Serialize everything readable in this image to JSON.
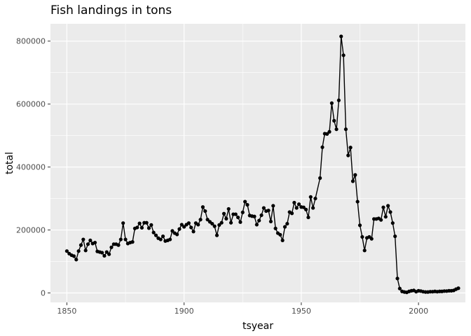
{
  "chart_data": {
    "type": "line",
    "title": "Fish landings in tons",
    "xlabel": "tsyear",
    "ylabel": "total",
    "xlim": [
      1843,
      2020
    ],
    "ylim": [
      -30000,
      855000
    ],
    "x_ticks": [
      1850,
      1900,
      1950,
      2000
    ],
    "x_minor_ticks": [
      1875,
      1925,
      1975,
      2025
    ],
    "y_ticks": [
      0,
      200000,
      400000,
      600000,
      800000
    ],
    "y_tick_labels": [
      "0",
      "200000",
      "400000",
      "600000",
      "800000"
    ],
    "y_minor_ticks": [
      100000,
      300000,
      500000,
      700000
    ],
    "grid": true,
    "panel_background": "#ebebeb",
    "markers": true,
    "series": [
      {
        "color": "#000000",
        "x": [
          1850,
          1851,
          1852,
          1853,
          1854,
          1855,
          1856,
          1857,
          1858,
          1859,
          1860,
          1861,
          1862,
          1863,
          1864,
          1865,
          1866,
          1867,
          1868,
          1869,
          1870,
          1871,
          1872,
          1873,
          1874,
          1875,
          1876,
          1877,
          1878,
          1879,
          1880,
          1881,
          1882,
          1883,
          1884,
          1885,
          1886,
          1887,
          1888,
          1889,
          1890,
          1891,
          1892,
          1893,
          1894,
          1895,
          1896,
          1897,
          1898,
          1899,
          1900,
          1901,
          1902,
          1903,
          1904,
          1905,
          1906,
          1907,
          1908,
          1909,
          1910,
          1911,
          1912,
          1913,
          1914,
          1915,
          1916,
          1917,
          1918,
          1919,
          1920,
          1921,
          1922,
          1923,
          1924,
          1925,
          1926,
          1927,
          1928,
          1929,
          1930,
          1931,
          1932,
          1933,
          1934,
          1935,
          1936,
          1937,
          1938,
          1939,
          1940,
          1941,
          1942,
          1943,
          1944,
          1945,
          1946,
          1947,
          1948,
          1949,
          1950,
          1951,
          1952,
          1953,
          1954,
          1955,
          1956,
          1958,
          1959,
          1960,
          1961,
          1962,
          1963,
          1964,
          1965,
          1966,
          1967,
          1968,
          1969,
          1970,
          1971,
          1972,
          1973,
          1974,
          1975,
          1976,
          1977,
          1978,
          1979,
          1980,
          1981,
          1982,
          1983,
          1984,
          1985,
          1986,
          1987,
          1988,
          1989,
          1990,
          1991,
          1992,
          1993,
          1994,
          1995,
          1996,
          1997,
          1998,
          1999,
          2000,
          2001,
          2002,
          2003,
          2004,
          2005,
          2006,
          2007,
          2008,
          2009,
          2010,
          2011,
          2012,
          2013,
          2014,
          2015,
          2016,
          2017
        ],
        "y": [
          133000,
          125000,
          120000,
          117000,
          106000,
          133000,
          152000,
          170000,
          135000,
          155000,
          167000,
          157000,
          160000,
          132000,
          130000,
          128000,
          118000,
          130000,
          123000,
          145000,
          155000,
          155000,
          152000,
          170000,
          222000,
          170000,
          157000,
          160000,
          162000,
          205000,
          208000,
          221000,
          207000,
          223000,
          223000,
          206000,
          216000,
          192000,
          183000,
          174000,
          170000,
          180000,
          165000,
          167000,
          170000,
          197000,
          190000,
          186000,
          203000,
          217000,
          210000,
          217000,
          222000,
          208000,
          195000,
          222000,
          217000,
          233000,
          273000,
          260000,
          233000,
          226000,
          220000,
          212000,
          183000,
          216000,
          223000,
          252000,
          236000,
          267000,
          223000,
          250000,
          250000,
          240000,
          225000,
          256000,
          290000,
          280000,
          246000,
          244000,
          243000,
          217000,
          230000,
          247000,
          270000,
          260000,
          262000,
          227000,
          277000,
          205000,
          190000,
          185000,
          167000,
          210000,
          220000,
          257000,
          253000,
          287000,
          270000,
          282000,
          273000,
          272000,
          265000,
          240000,
          305000,
          270000,
          300000,
          365000,
          463000,
          506000,
          505000,
          512000,
          603000,
          547000,
          520000,
          612000,
          815000,
          755000,
          520000,
          437000,
          462000,
          355000,
          375000,
          290000,
          215000,
          178000,
          135000,
          175000,
          178000,
          172000,
          235000,
          235000,
          237000,
          232000,
          272000,
          242000,
          277000,
          257000,
          222000,
          180000,
          46000,
          14000,
          5000,
          3000,
          2000,
          5000,
          7000,
          8000,
          4000,
          7000,
          6000,
          4000,
          3000,
          3000,
          4000,
          4000,
          5000,
          4000,
          5000,
          5000,
          6000,
          6000,
          7000,
          7000,
          8000,
          12000,
          15000
        ]
      }
    ]
  }
}
